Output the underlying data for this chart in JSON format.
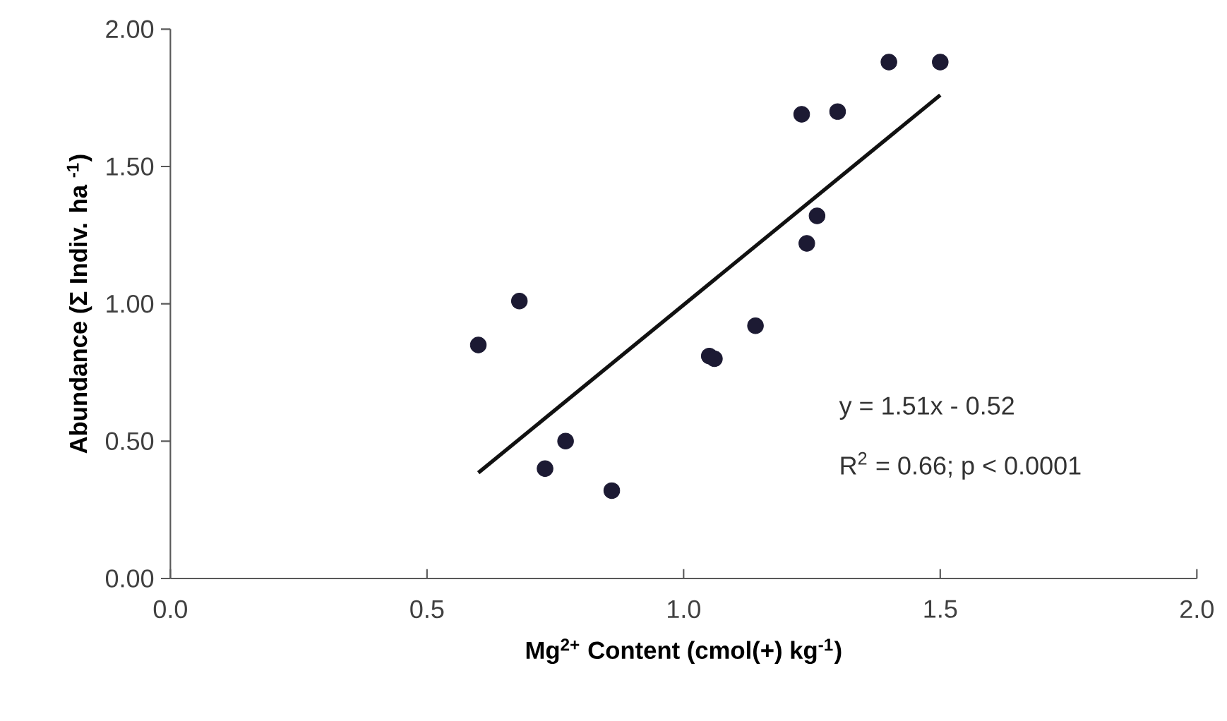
{
  "chart_data": {
    "type": "scatter",
    "xlabel": "**Mg$^{2+}$ Content (cmol(+) kg$^{-1}$)**",
    "ylabel": "**Abundance (Σ Indiv. ha $^{-1}$)**",
    "annotations": [
      "y = 1.51x - 0.52",
      "R$^{2}$ = 0.66; p < 0.0001"
    ],
    "xlim": [
      0,
      2
    ],
    "ylim": [
      0,
      2
    ],
    "xticks": [
      {
        "value": 0,
        "label": "0.0"
      },
      {
        "value": 0.5,
        "label": "0.5"
      },
      {
        "value": 1,
        "label": "1.0"
      },
      {
        "value": 1.5,
        "label": "1.5"
      },
      {
        "value": 2,
        "label": "2.0"
      }
    ],
    "yticks": [
      {
        "value": 0,
        "label": "0.00"
      },
      {
        "value": 0.5,
        "label": "0.50"
      },
      {
        "value": 1,
        "label": "1.00"
      },
      {
        "value": 1.5,
        "label": "1.50"
      },
      {
        "value": 2,
        "label": "2.00"
      }
    ],
    "series": [
      {
        "marker": "circle",
        "color": "#1c1a33",
        "x": [
          0.6,
          0.68,
          0.73,
          0.77,
          0.86,
          1.05,
          1.06,
          1.14,
          1.23,
          1.3,
          1.24,
          1.26,
          1.4,
          1.5
        ],
        "values": [
          0.85,
          1.01,
          0.4,
          0.5,
          0.32,
          0.81,
          0.8,
          0.92,
          1.69,
          1.7,
          1.22,
          1.32,
          1.88,
          1.88
        ]
      },
      {
        "type": "line",
        "marker": "none",
        "color": "#111111",
        "x": [
          0.6,
          1.5
        ],
        "values": [
          0.385,
          1.76
        ]
      }
    ]
  }
}
